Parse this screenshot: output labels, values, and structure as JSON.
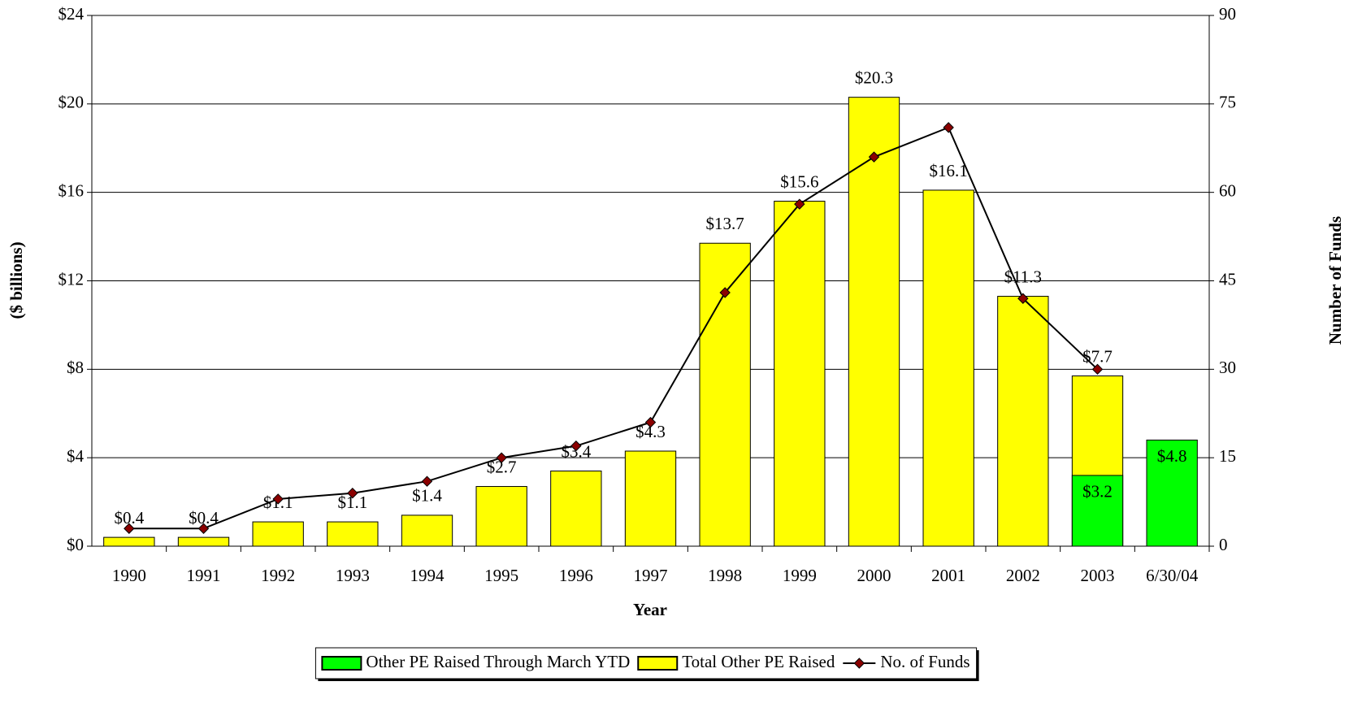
{
  "chart_data": {
    "type": "bar",
    "categories": [
      "1990",
      "1991",
      "1992",
      "1993",
      "1994",
      "1995",
      "1996",
      "1997",
      "1998",
      "1999",
      "2000",
      "2001",
      "2002",
      "2003",
      "6/30/04"
    ],
    "xlabel": "Year",
    "ylabel": "($ billions)",
    "y2label": "Number of Funds",
    "ylim": [
      0,
      24
    ],
    "yticks": [
      {
        "value": 0,
        "label": "$0"
      },
      {
        "value": 4,
        "label": "$4"
      },
      {
        "value": 8,
        "label": "$8"
      },
      {
        "value": 12,
        "label": "$12"
      },
      {
        "value": 16,
        "label": "$16"
      },
      {
        "value": 20,
        "label": "$20"
      },
      {
        "value": 24,
        "label": "$24"
      }
    ],
    "y2lim": [
      0,
      90
    ],
    "y2ticks": [
      0,
      15,
      30,
      45,
      60,
      75,
      90
    ],
    "grid": true,
    "legend": "bottom",
    "series": [
      {
        "name": "Other PE Raised Through March YTD",
        "type": "bar",
        "color": "#00ff00",
        "label_position": "inside",
        "values": [
          null,
          null,
          null,
          null,
          null,
          null,
          null,
          null,
          null,
          null,
          null,
          null,
          null,
          3.2,
          4.8
        ],
        "value_labels": [
          null,
          null,
          null,
          null,
          null,
          null,
          null,
          null,
          null,
          null,
          null,
          null,
          null,
          "$3.2",
          "$4.8"
        ]
      },
      {
        "name": "Total Other PE Raised",
        "type": "bar",
        "color": "#ffff00",
        "label_position": "above",
        "values": [
          0.4,
          0.4,
          1.1,
          1.1,
          1.4,
          2.7,
          3.4,
          4.3,
          13.7,
          15.6,
          20.3,
          16.1,
          11.3,
          7.7,
          null
        ],
        "value_labels": [
          "$0.4",
          "$0.4",
          "$1.1",
          "$1.1",
          "$1.4",
          "$2.7",
          "$3.4",
          "$4.3",
          "$13.7",
          "$15.6",
          "$20.3",
          "$16.1",
          "$11.3",
          "$7.7",
          null
        ]
      },
      {
        "name": "No. of Funds",
        "type": "line",
        "axis": "y2",
        "color": "#000000",
        "marker_color": "#8b0000",
        "values": [
          3,
          3,
          8,
          9,
          11,
          15,
          17,
          21,
          43,
          58,
          66,
          71,
          42,
          30,
          null
        ]
      }
    ]
  }
}
